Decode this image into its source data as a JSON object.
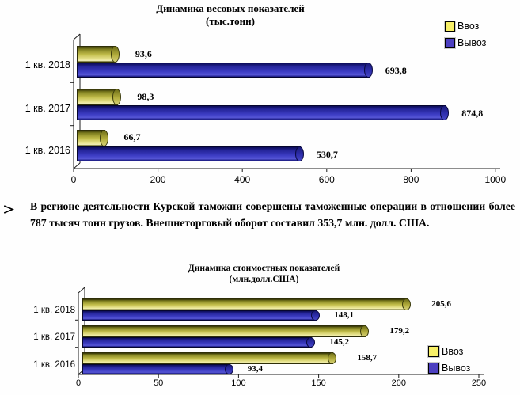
{
  "page": {
    "background": "#ffffff"
  },
  "top_chart": {
    "title": "Динамика весовых показателей",
    "subtitle": "(тыс.тонн)",
    "legend": {
      "import": "Ввоз",
      "export": "Вывоз"
    },
    "x_ticks": [
      "0",
      "200",
      "400",
      "600",
      "800",
      "1000"
    ],
    "rows": [
      {
        "category": "1 кв. 2018",
        "import_value": "93,6",
        "export_value": "693,8"
      },
      {
        "category": "1 кв. 2017",
        "import_value": "98,3",
        "export_value": "874,8"
      },
      {
        "category": "1 кв. 2016",
        "import_value": "66,7",
        "export_value": "530,7"
      }
    ],
    "colors": {
      "import": "#d9d23f",
      "export": "#3a35b5"
    }
  },
  "paragraph": {
    "bullet_icon": "arrow-right-outline",
    "text": "В регионе деятельности Курской таможни совершены таможенные операции в отношении более 787 тысяч тонн грузов. Внешнеторговый оборот составил 353,7 млн. долл. США."
  },
  "bottom_chart": {
    "title": "Динамика стоимостных показателей",
    "subtitle": "(млн.долл.США)",
    "legend": {
      "import": "Ввоз",
      "export": "Вывоз"
    },
    "x_ticks": [
      "0",
      "50",
      "100",
      "150",
      "200",
      "250"
    ],
    "rows": [
      {
        "category": "1 кв. 2018",
        "import_value": "205,6",
        "export_value": "148,1"
      },
      {
        "category": "1 кв. 2017",
        "import_value": "179,2",
        "export_value": "145,2"
      },
      {
        "category": "1 кв. 2016",
        "import_value": "158,7",
        "export_value": "93,4"
      }
    ],
    "colors": {
      "import": "#d9d23f",
      "export": "#3a35b5"
    }
  },
  "chart_data": [
    {
      "type": "bar",
      "orientation": "horizontal",
      "style": "3d-cylinder",
      "title": "Динамика весовых показателей",
      "subtitle": "(тыс.тонн)",
      "categories": [
        "1 кв. 2018",
        "1 кв. 2017",
        "1 кв. 2016"
      ],
      "series": [
        {
          "name": "Ввоз",
          "color": "#d9d23f",
          "values": [
            93.6,
            98.3,
            66.7
          ]
        },
        {
          "name": "Вывоз",
          "color": "#3a35b5",
          "values": [
            693.8,
            874.8,
            530.7
          ]
        }
      ],
      "xlabel": "",
      "ylabel": "",
      "xlim": [
        0,
        1000
      ],
      "x_ticks": [
        0,
        200,
        400,
        600,
        800,
        1000
      ],
      "grid": false,
      "legend_position": "top-right",
      "data_labels": true
    },
    {
      "type": "bar",
      "orientation": "horizontal",
      "style": "3d-cylinder",
      "title": "Динамика стоимостных показателей",
      "subtitle": "(млн.долл.США)",
      "categories": [
        "1 кв. 2018",
        "1 кв. 2017",
        "1 кв. 2016"
      ],
      "series": [
        {
          "name": "Ввоз",
          "color": "#d9d23f",
          "values": [
            205.6,
            179.2,
            158.7
          ]
        },
        {
          "name": "Вывоз",
          "color": "#3a35b5",
          "values": [
            148.1,
            145.2,
            93.4
          ]
        }
      ],
      "xlabel": "",
      "ylabel": "",
      "xlim": [
        0,
        250
      ],
      "x_ticks": [
        0,
        50,
        100,
        150,
        200,
        250
      ],
      "grid": false,
      "legend_position": "right",
      "data_labels": true
    }
  ]
}
